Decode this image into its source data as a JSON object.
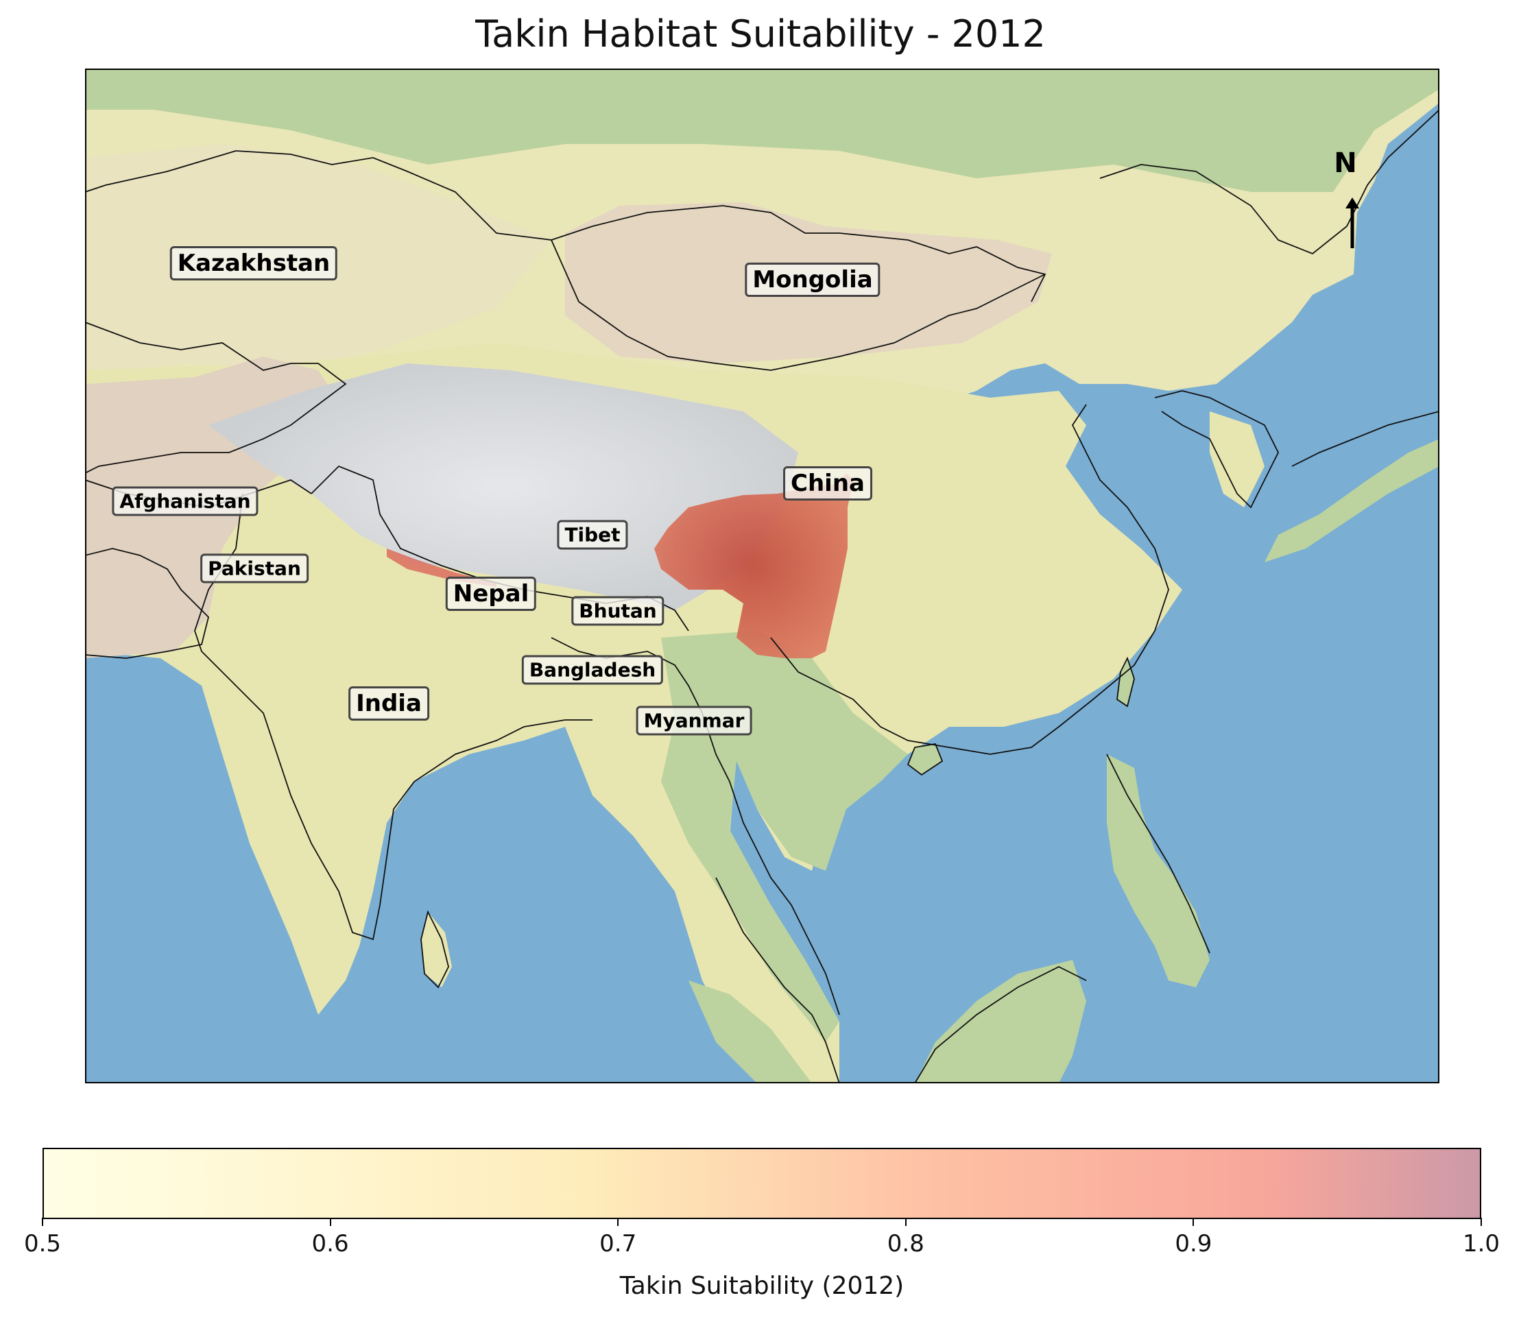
{
  "title": "Takin Habitat Suitability - 2012",
  "map": {
    "country_labels": [
      {
        "name": "Kazakhstan",
        "size": "lg"
      },
      {
        "name": "Mongolia",
        "size": "lg"
      },
      {
        "name": "China",
        "size": "lg"
      },
      {
        "name": "Afghanistan",
        "size": "sm"
      },
      {
        "name": "Tibet",
        "size": "sm"
      },
      {
        "name": "Pakistan",
        "size": "sm"
      },
      {
        "name": "Nepal",
        "size": "lg"
      },
      {
        "name": "Bhutan",
        "size": "sm"
      },
      {
        "name": "Bangladesh",
        "size": "sm"
      },
      {
        "name": "India",
        "size": "lg"
      },
      {
        "name": "Myanmar",
        "size": "sm"
      }
    ],
    "north_arrow_label": "N",
    "colors": {
      "ocean": "#7aaed3",
      "land_low": "#eae6b6",
      "land_green": "#b7d09f",
      "highland": "#e2d3c2",
      "plateau": "#d8dadd",
      "suitability_high": "#d9655a"
    }
  },
  "colorbar": {
    "label": "Takin Suitability (2012)",
    "min": 0.5,
    "max": 1.0,
    "ticks": [
      "0.5",
      "0.6",
      "0.7",
      "0.8",
      "0.9",
      "1.0"
    ],
    "colors": [
      "#ffffcc",
      "#fed976",
      "#fc8d59",
      "#f03b20",
      "#800026"
    ]
  }
}
